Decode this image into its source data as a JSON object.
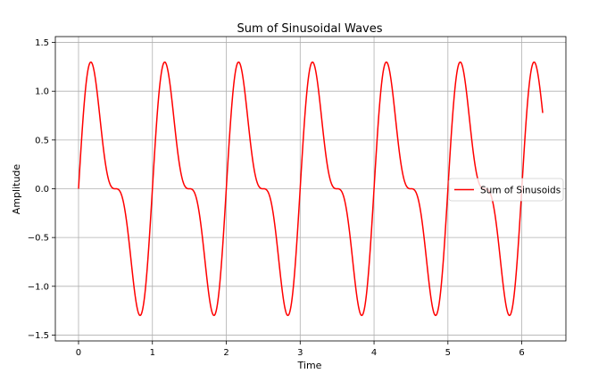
{
  "chart_data": {
    "type": "line",
    "title": "Sum of Sinusoidal Waves",
    "xlabel": "Time",
    "ylabel": "Amplitude",
    "xlim": [
      -0.314,
      6.597
    ],
    "ylim": [
      -1.56,
      1.56
    ],
    "x_ticks": [
      0,
      1,
      2,
      3,
      4,
      5,
      6
    ],
    "y_ticks": [
      -1.5,
      -1.0,
      -0.5,
      0.0,
      0.5,
      1.0,
      1.5
    ],
    "x_tick_labels": [
      "0",
      "1",
      "2",
      "3",
      "4",
      "5",
      "6"
    ],
    "y_tick_labels": [
      "−1.5",
      "−1.0",
      "−0.5",
      "0.0",
      "0.5",
      "1.0",
      "1.5"
    ],
    "grid": true,
    "legend_position": "center-right",
    "series": [
      {
        "name": "Sum of Sinusoids",
        "color": "#ff0000",
        "function": "sin(2*pi*t) + 0.5*sin(4*pi*t)",
        "x_range": [
          0,
          6.283
        ],
        "samples": 1000
      }
    ]
  }
}
